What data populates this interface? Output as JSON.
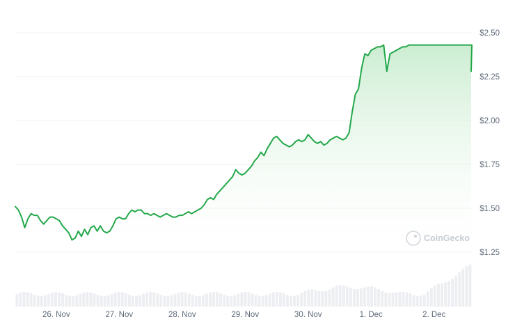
{
  "watermark": "CoinGecko",
  "colors": {
    "line": "#23a84a",
    "area_top": "#c9eccf",
    "area_bottom": "#ffffff",
    "grid": "#eef0f3",
    "volume": "#eceef1",
    "tick_text": "#5f6b7a"
  },
  "chart_data": {
    "type": "area",
    "title": "",
    "xlabel": "",
    "ylabel": "",
    "ylim": [
      1.25,
      2.5
    ],
    "y_ticks": [
      {
        "value": 2.5,
        "label": "$2.50"
      },
      {
        "value": 2.25,
        "label": "$2.25"
      },
      {
        "value": 2.0,
        "label": "$2.00"
      },
      {
        "value": 1.75,
        "label": "$1.75"
      },
      {
        "value": 1.5,
        "label": "$1.50"
      },
      {
        "value": 1.25,
        "label": "$1.25"
      }
    ],
    "x_range": [
      25.35,
      32.6
    ],
    "x_ticks": [
      {
        "value": 26,
        "label": "26. Nov"
      },
      {
        "value": 27,
        "label": "27. Nov"
      },
      {
        "value": 28,
        "label": "28. Nov"
      },
      {
        "value": 29,
        "label": "29. Nov"
      },
      {
        "value": 30,
        "label": "30. Nov"
      },
      {
        "value": 31,
        "label": "1. Dec"
      },
      {
        "value": 32,
        "label": "2. Dec"
      }
    ],
    "grid": true,
    "legend": "none",
    "series": [
      {
        "x": [
          25.35,
          25.4,
          25.45,
          25.5,
          25.55,
          25.6,
          25.65,
          25.7,
          25.75,
          25.8,
          25.85,
          25.9,
          25.95,
          26.0,
          26.05,
          26.1,
          26.15,
          26.2,
          26.25,
          26.3,
          26.35,
          26.4,
          26.45,
          26.5,
          26.55,
          26.6,
          26.65,
          26.7,
          26.75,
          26.8,
          26.85,
          26.9,
          26.95,
          27.0,
          27.05,
          27.1,
          27.15,
          27.2,
          27.25,
          27.3,
          27.35,
          27.4,
          27.45,
          27.5,
          27.55,
          27.6,
          27.65,
          27.7,
          27.75,
          27.8,
          27.85,
          27.9,
          27.95,
          28.0,
          28.05,
          28.1,
          28.15,
          28.2,
          28.25,
          28.3,
          28.35,
          28.4,
          28.45,
          28.5,
          28.55,
          28.6,
          28.65,
          28.7,
          28.75,
          28.8,
          28.85,
          28.9,
          28.95,
          29.0,
          29.05,
          29.1,
          29.15,
          29.2,
          29.25,
          29.3,
          29.35,
          29.4,
          29.45,
          29.5,
          29.55,
          29.6,
          29.65,
          29.7,
          29.75,
          29.8,
          29.85,
          29.9,
          29.95,
          30.0,
          30.05,
          30.1,
          30.15,
          30.2,
          30.25,
          30.3,
          30.35,
          30.4,
          30.45,
          30.5,
          30.55,
          30.6,
          30.65,
          30.7,
          30.75,
          30.8,
          30.85,
          30.9,
          30.95,
          31.0,
          31.05,
          31.1,
          31.15,
          31.2,
          31.25,
          31.3,
          31.35,
          31.4,
          31.45,
          31.5,
          31.55,
          31.6,
          31.65,
          31.7,
          31.75,
          31.8,
          31.85,
          31.9,
          31.95,
          32.0,
          32.05,
          32.1,
          32.15,
          32.2,
          32.25,
          32.3,
          32.35,
          32.4,
          32.45,
          32.5,
          32.55,
          32.6
        ],
        "y": [
          1.51,
          1.49,
          1.45,
          1.39,
          1.44,
          1.47,
          1.46,
          1.46,
          1.43,
          1.41,
          1.43,
          1.45,
          1.45,
          1.44,
          1.43,
          1.4,
          1.38,
          1.36,
          1.32,
          1.33,
          1.37,
          1.34,
          1.38,
          1.35,
          1.39,
          1.4,
          1.37,
          1.4,
          1.37,
          1.36,
          1.37,
          1.4,
          1.44,
          1.45,
          1.44,
          1.44,
          1.47,
          1.49,
          1.48,
          1.49,
          1.49,
          1.47,
          1.47,
          1.46,
          1.47,
          1.46,
          1.45,
          1.46,
          1.47,
          1.46,
          1.45,
          1.45,
          1.46,
          1.46,
          1.47,
          1.48,
          1.47,
          1.48,
          1.49,
          1.5,
          1.52,
          1.55,
          1.56,
          1.55,
          1.58,
          1.6,
          1.62,
          1.64,
          1.66,
          1.68,
          1.72,
          1.7,
          1.69,
          1.7,
          1.72,
          1.74,
          1.77,
          1.79,
          1.82,
          1.8,
          1.84,
          1.87,
          1.9,
          1.91,
          1.89,
          1.87,
          1.86,
          1.85,
          1.86,
          1.88,
          1.89,
          1.88,
          1.89,
          1.92,
          1.9,
          1.88,
          1.87,
          1.88,
          1.86,
          1.87,
          1.89,
          1.9,
          1.91,
          1.9,
          1.89,
          1.9,
          1.93,
          2.05,
          2.15,
          2.18,
          2.3,
          2.38,
          2.37,
          2.4,
          2.41,
          2.42,
          2.42,
          2.43,
          2.28,
          2.38,
          2.39,
          2.4,
          2.41,
          2.42,
          2.42,
          2.43,
          2.43,
          2.43,
          2.43,
          2.43,
          2.43,
          2.43,
          2.43,
          2.43,
          2.43,
          2.43,
          2.43,
          2.43,
          2.43,
          2.43,
          2.43,
          2.43,
          2.43,
          2.43,
          2.43,
          2.43
        ]
      }
    ]
  }
}
